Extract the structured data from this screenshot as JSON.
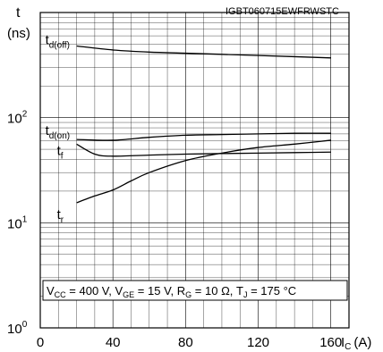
{
  "chart_data": {
    "type": "line",
    "title": "IGBT060715EWFRWSTC",
    "ylabel": "t",
    "yunit": "(ns)",
    "xlabel_main": "I",
    "xlabel_sub": "C",
    "xunit": "(A)",
    "xlim": [
      0,
      170
    ],
    "ylim": [
      1,
      1000
    ],
    "yscale": "log",
    "grid": true,
    "x_ticks": [
      "0",
      "40",
      "80",
      "120",
      "160"
    ],
    "y_ticks": [
      {
        "base": "10",
        "exp": "0"
      },
      {
        "base": "10",
        "exp": "1"
      },
      {
        "base": "10",
        "exp": "2"
      }
    ],
    "conditions": [
      {
        "t": "V"
      },
      {
        "t": "CC",
        "s": "sub"
      },
      {
        "t": " = 400 V, V"
      },
      {
        "t": "GE",
        "s": "sub"
      },
      {
        "t": " = 15 V, R"
      },
      {
        "t": "G",
        "s": "sub"
      },
      {
        "t": " = 10 Ω, T"
      },
      {
        "t": "J",
        "s": "sub"
      },
      {
        "t": " = 175 °C"
      }
    ],
    "series": [
      {
        "label_main": "t",
        "label_sub": "d(off)",
        "x": [
          20,
          40,
          60,
          80,
          100,
          120,
          140,
          160
        ],
        "y": [
          480,
          440,
          420,
          410,
          400,
          390,
          380,
          370
        ]
      },
      {
        "label_main": "t",
        "label_sub": "d(on)",
        "x": [
          20,
          40,
          60,
          80,
          100,
          120,
          140,
          160
        ],
        "y": [
          62,
          61,
          65,
          68,
          69,
          70,
          71,
          71
        ]
      },
      {
        "label_main": "t",
        "label_sub": "f",
        "x": [
          20,
          30,
          40,
          60,
          80,
          100,
          120,
          140,
          160
        ],
        "y": [
          56,
          45,
          43,
          44,
          45,
          45.5,
          46,
          46.5,
          47
        ]
      },
      {
        "label_main": "t",
        "label_sub": "r",
        "x": [
          20,
          30,
          40,
          50,
          60,
          80,
          100,
          120,
          140,
          160
        ],
        "y": [
          15.5,
          18,
          20.5,
          25,
          30,
          39,
          46,
          52,
          56,
          61
        ]
      }
    ]
  }
}
